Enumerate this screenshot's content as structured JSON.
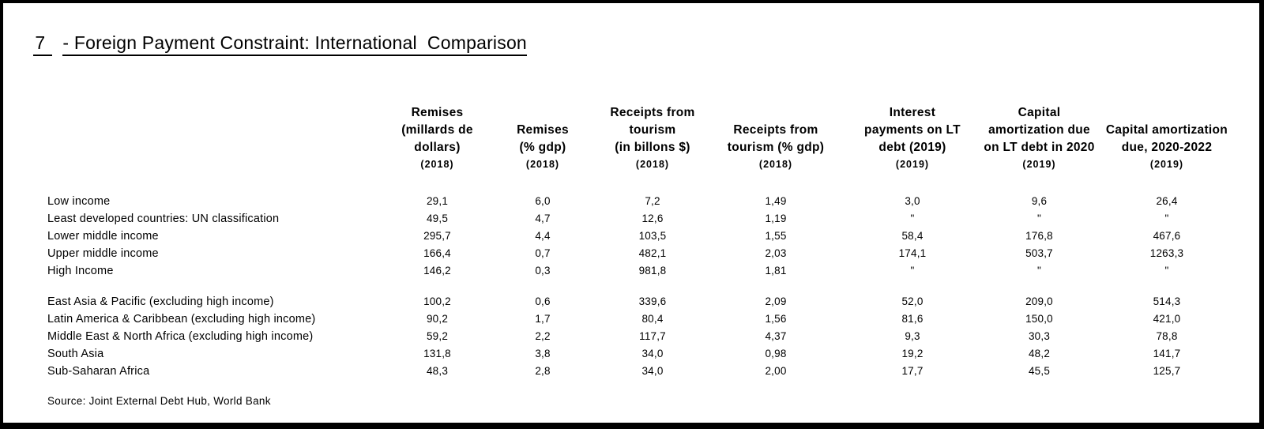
{
  "title": {
    "number": "7",
    "text": "- Foreign Payment Constraint: International  Comparison"
  },
  "table": {
    "columns": [
      {
        "label": "Remises\n(millards de\ndollars)",
        "year": "(2018)"
      },
      {
        "label": "Remises\n(% gdp)",
        "year": "(2018)"
      },
      {
        "label": "Receipts from\ntourism\n(in billons $)",
        "year": "(2018)"
      },
      {
        "label": "Receipts from\ntourism (% gdp)",
        "year": "(2018)"
      },
      {
        "label": "Interest\npayments on LT\ndebt (2019)",
        "year": "(2019)"
      },
      {
        "label": "Capital\namortization due\non LT debt in 2020",
        "year": "(2019)"
      },
      {
        "label": "Capital amortization\ndue, 2020-2022",
        "year": "(2019)"
      }
    ],
    "groups": [
      {
        "rows": [
          {
            "label": "Low income",
            "values": [
              "29,1",
              "6,0",
              "7,2",
              "1,49",
              "3,0",
              "9,6",
              "26,4"
            ]
          },
          {
            "label": "Least developed countries: UN classification",
            "values": [
              "49,5",
              "4,7",
              "12,6",
              "1,19",
              "\"",
              "\"",
              "\""
            ]
          },
          {
            "label": "Lower middle income",
            "values": [
              "295,7",
              "4,4",
              "103,5",
              "1,55",
              "58,4",
              "176,8",
              "467,6"
            ]
          },
          {
            "label": "Upper middle income",
            "values": [
              "166,4",
              "0,7",
              "482,1",
              "2,03",
              "174,1",
              "503,7",
              "1263,3"
            ]
          },
          {
            "label": "High Income",
            "values": [
              "146,2",
              "0,3",
              "981,8",
              "1,81",
              "\"",
              "\"",
              "\""
            ]
          }
        ]
      },
      {
        "rows": [
          {
            "label": "East Asia & Pacific (excluding high income)",
            "values": [
              "100,2",
              "0,6",
              "339,6",
              "2,09",
              "52,0",
              "209,0",
              "514,3"
            ]
          },
          {
            "label": "Latin America & Caribbean (excluding high income)",
            "values": [
              "90,2",
              "1,7",
              "80,4",
              "1,56",
              "81,6",
              "150,0",
              "421,0"
            ]
          },
          {
            "label": "Middle East & North Africa (excluding high income)",
            "values": [
              "59,2",
              "2,2",
              "117,7",
              "4,37",
              "9,3",
              "30,3",
              "78,8"
            ]
          },
          {
            "label": "South Asia",
            "values": [
              "131,8",
              "3,8",
              "34,0",
              "0,98",
              "19,2",
              "48,2",
              "141,7"
            ]
          },
          {
            "label": "Sub-Saharan Africa",
            "values": [
              "48,3",
              "2,8",
              "34,0",
              "2,00",
              "17,7",
              "45,5",
              "125,7"
            ]
          }
        ]
      }
    ]
  },
  "source": "Source: Joint External Debt Hub, World Bank",
  "colors": {
    "text": "#000000",
    "background": "#ffffff",
    "border": "#000000"
  }
}
